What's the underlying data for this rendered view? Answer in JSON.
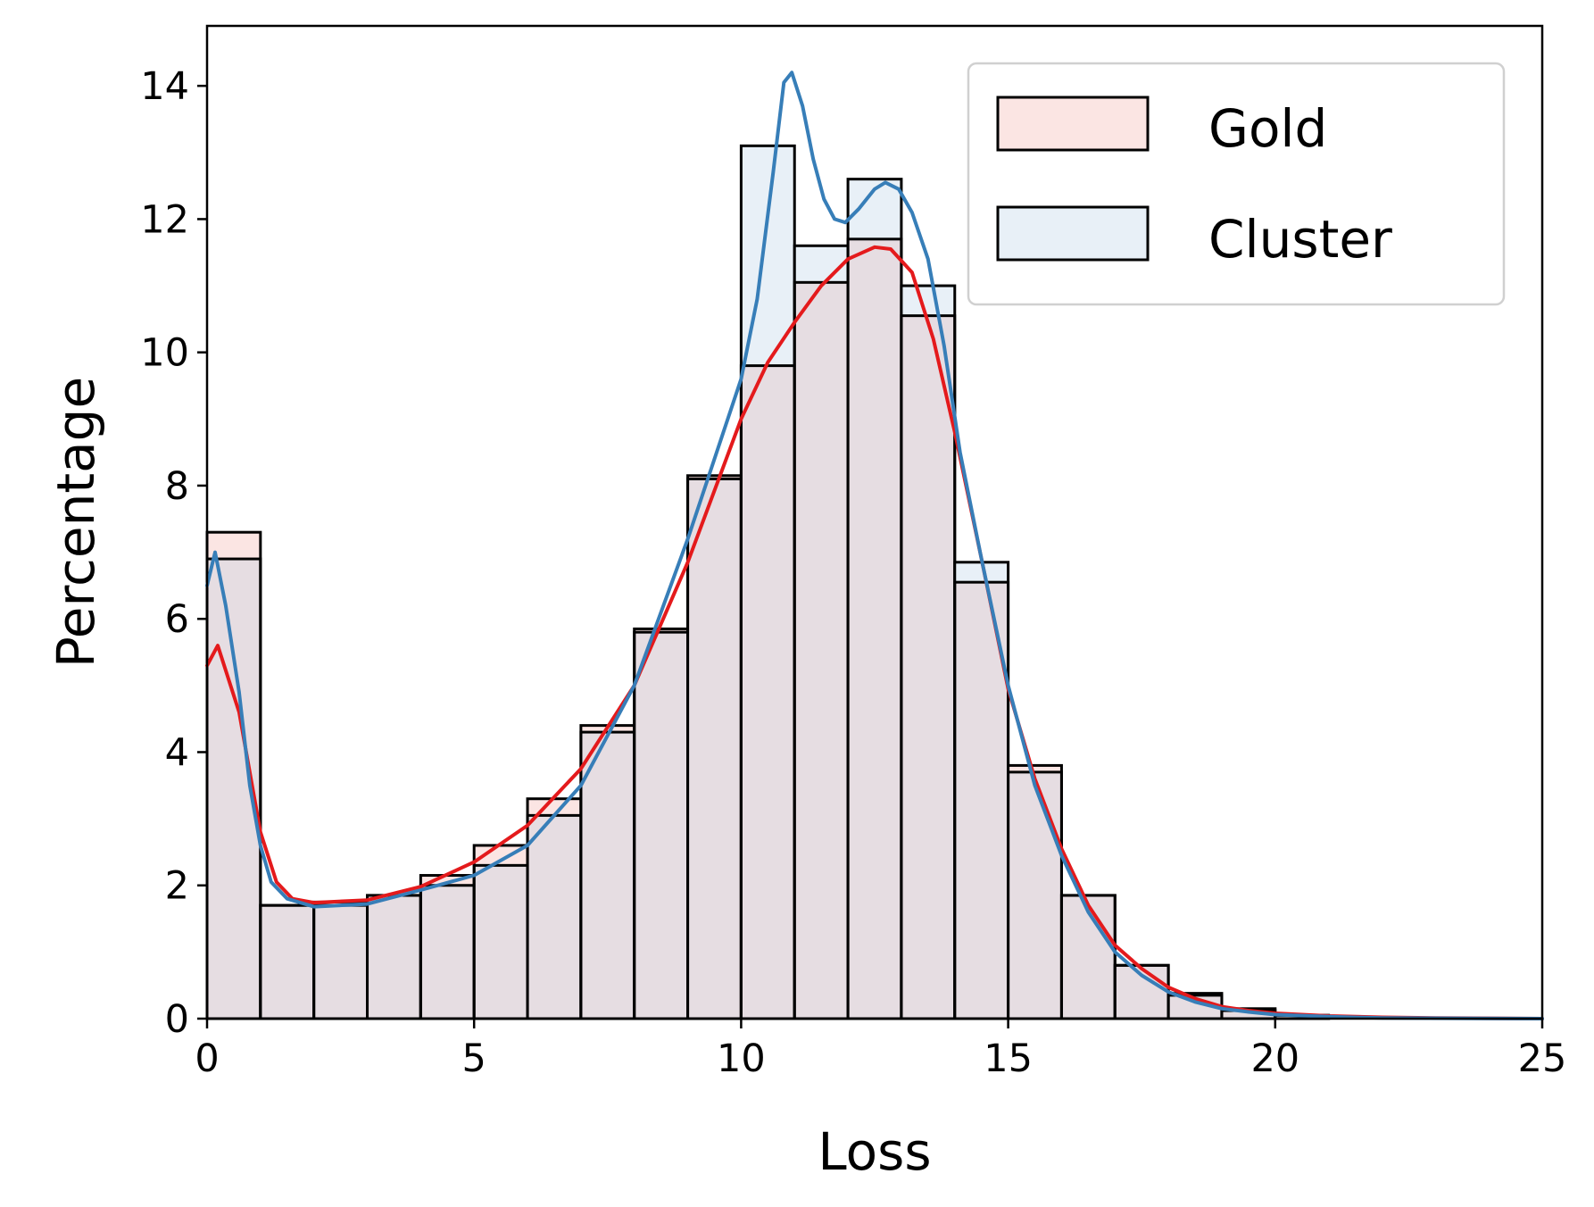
{
  "chart_data": {
    "type": "bar",
    "subtype": "overlaid-histogram-with-kde",
    "title": "",
    "xlabel": "Loss",
    "ylabel": "Percentage",
    "xlim": [
      0,
      25
    ],
    "ylim": [
      0,
      14.9
    ],
    "xticks": [
      0,
      5,
      10,
      15,
      20,
      25
    ],
    "yticks": [
      0,
      2,
      4,
      6,
      8,
      10,
      12,
      14
    ],
    "grid": false,
    "legend_position": "top-right",
    "bin_edges": [
      0,
      1,
      2,
      3,
      4,
      5,
      6,
      7,
      8,
      9,
      10,
      11,
      12,
      13,
      14,
      15,
      16,
      17,
      18,
      19,
      20,
      21,
      22,
      23,
      24,
      25
    ],
    "colors": {
      "gold_fill": "#fbe5e3",
      "cluster_fill": "#e8f0f7",
      "overlap_fill": "#e6dde2",
      "gold_line": "#e41a1c",
      "cluster_line": "#377eb8",
      "edge": "#000000"
    },
    "series": [
      {
        "name": "Gold",
        "hist": [
          7.3,
          1.7,
          1.75,
          1.85,
          2.15,
          2.6,
          3.3,
          4.4,
          5.85,
          8.15,
          9.8,
          11.05,
          11.7,
          10.55,
          6.55,
          3.8,
          1.85,
          0.8,
          0.38,
          0.15,
          0.05,
          0.0,
          0.0,
          0.0,
          0.0
        ],
        "kde": [
          [
            0,
            5.3
          ],
          [
            0.2,
            5.6
          ],
          [
            0.6,
            4.6
          ],
          [
            1.0,
            2.8
          ],
          [
            1.3,
            2.05
          ],
          [
            1.6,
            1.8
          ],
          [
            2,
            1.74
          ],
          [
            3,
            1.78
          ],
          [
            4,
            1.98
          ],
          [
            5,
            2.35
          ],
          [
            6,
            2.9
          ],
          [
            7,
            3.75
          ],
          [
            8,
            5.0
          ],
          [
            9,
            6.85
          ],
          [
            10,
            9.0
          ],
          [
            10.5,
            9.85
          ],
          [
            11,
            10.45
          ],
          [
            11.5,
            11.0
          ],
          [
            12,
            11.4
          ],
          [
            12.5,
            11.58
          ],
          [
            12.8,
            11.55
          ],
          [
            13.2,
            11.2
          ],
          [
            13.6,
            10.2
          ],
          [
            14,
            8.8
          ],
          [
            14.5,
            6.9
          ],
          [
            15,
            4.95
          ],
          [
            15.5,
            3.6
          ],
          [
            16,
            2.55
          ],
          [
            16.5,
            1.7
          ],
          [
            17,
            1.1
          ],
          [
            17.5,
            0.75
          ],
          [
            18,
            0.47
          ],
          [
            18.5,
            0.3
          ],
          [
            19,
            0.18
          ],
          [
            19.5,
            0.12
          ],
          [
            20,
            0.08
          ],
          [
            21,
            0.04
          ],
          [
            22,
            0.02
          ],
          [
            23,
            0.01
          ],
          [
            25,
            0.0
          ]
        ]
      },
      {
        "name": "Cluster",
        "hist": [
          6.9,
          1.7,
          1.7,
          1.85,
          2.0,
          2.3,
          3.05,
          4.3,
          5.8,
          8.1,
          13.1,
          11.6,
          12.6,
          11.0,
          6.85,
          3.7,
          1.85,
          0.8,
          0.35,
          0.12,
          0.05,
          0.0,
          0.0,
          0.0,
          0.0
        ],
        "kde": [
          [
            0,
            6.5
          ],
          [
            0.15,
            7.0
          ],
          [
            0.35,
            6.2
          ],
          [
            0.6,
            4.9
          ],
          [
            0.8,
            3.5
          ],
          [
            1.0,
            2.6
          ],
          [
            1.2,
            2.05
          ],
          [
            1.5,
            1.8
          ],
          [
            2,
            1.68
          ],
          [
            3,
            1.72
          ],
          [
            4,
            1.93
          ],
          [
            5,
            2.15
          ],
          [
            6,
            2.6
          ],
          [
            7,
            3.5
          ],
          [
            8,
            5.0
          ],
          [
            9,
            7.2
          ],
          [
            9.5,
            8.4
          ],
          [
            10,
            9.6
          ],
          [
            10.3,
            10.8
          ],
          [
            10.6,
            12.7
          ],
          [
            10.8,
            14.05
          ],
          [
            10.95,
            14.2
          ],
          [
            11.15,
            13.7
          ],
          [
            11.35,
            12.9
          ],
          [
            11.55,
            12.3
          ],
          [
            11.75,
            12.0
          ],
          [
            11.95,
            11.95
          ],
          [
            12.2,
            12.15
          ],
          [
            12.5,
            12.45
          ],
          [
            12.7,
            12.55
          ],
          [
            12.95,
            12.45
          ],
          [
            13.2,
            12.1
          ],
          [
            13.5,
            11.4
          ],
          [
            13.8,
            10.1
          ],
          [
            14.1,
            8.5
          ],
          [
            14.5,
            6.9
          ],
          [
            15,
            5.0
          ],
          [
            15.5,
            3.5
          ],
          [
            16,
            2.45
          ],
          [
            16.5,
            1.6
          ],
          [
            17,
            1.0
          ],
          [
            17.5,
            0.65
          ],
          [
            18,
            0.4
          ],
          [
            18.5,
            0.25
          ],
          [
            19,
            0.15
          ],
          [
            19.5,
            0.1
          ],
          [
            20,
            0.06
          ],
          [
            21,
            0.03
          ],
          [
            22,
            0.01
          ],
          [
            25,
            0.0
          ]
        ]
      }
    ]
  }
}
